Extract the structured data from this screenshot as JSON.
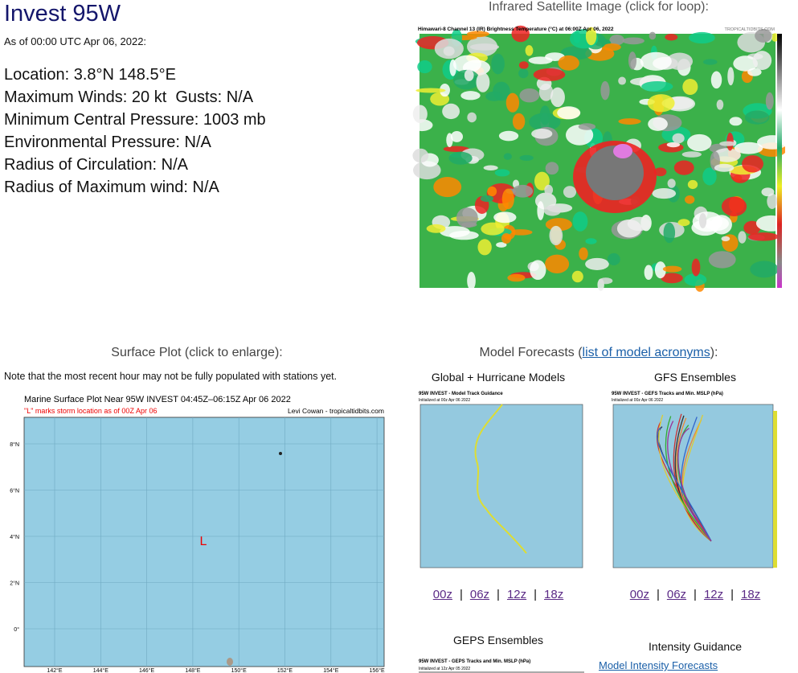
{
  "header": {
    "title": "Invest 95W",
    "as_of": "As of 00:00 UTC Apr 06, 2022:"
  },
  "details": [
    "Location: 3.8°N 148.5°E",
    "Maximum Winds: 20 kt  Gusts: N/A",
    "Minimum Central Pressure: 1003 mb",
    "Environmental Pressure: N/A",
    "Radius of Circulation: N/A",
    "Radius of Maximum wind: N/A"
  ],
  "satellite": {
    "heading": "Infrared Satellite Image (click for loop):",
    "image_title": "Himawari-8 Channel 13 (IR) Brightness Temperature (°C) at 06:00Z Apr 06, 2022",
    "credit": "TROPICALTIDBITS.COM"
  },
  "surface": {
    "heading": "Surface Plot (click to enlarge):",
    "note": "Note that the most recent hour may not be fully populated with stations yet.",
    "image_title": "Marine Surface Plot Near 95W INVEST 04:45Z–06:15Z Apr 06 2022",
    "image_subtitle": "\"L\" marks storm location as of 00Z Apr 06",
    "credit": "Levi Cowan - tropicaltidbits.com",
    "lat_labels": [
      "8°N",
      "6°N",
      "4°N",
      "2°N",
      "0°"
    ],
    "lon_labels": [
      "142°E",
      "144°E",
      "146°E",
      "148°E",
      "150°E",
      "152°E",
      "154°E",
      "156°E"
    ],
    "storm_marker": "L"
  },
  "models": {
    "heading_before": "Model Forecasts (",
    "heading_link": "list of model acronyms",
    "heading_after": "):",
    "separator": "|",
    "panels": [
      {
        "title": "Global + Hurricane Models",
        "image_title": "95W INVEST - Model Track Guidance",
        "image_subtitle": "Initialized at 00z Apr 06 2022",
        "links": [
          "00z",
          "06z",
          "12z",
          "18z"
        ]
      },
      {
        "title": "GFS Ensembles",
        "image_title": "95W INVEST - GEFS Tracks and Min. MSLP (hPa)",
        "image_subtitle": "Initialized at 00z Apr 06 2022",
        "links": [
          "00z",
          "06z",
          "12z",
          "18z"
        ]
      }
    ],
    "geps": {
      "title": "GEPS Ensembles",
      "image_title": "95W INVEST - GEPS Tracks and Min. MSLP (hPa)",
      "image_subtitle": "Initialized at 12z Apr 05 2022"
    },
    "intensity": {
      "title": "Intensity Guidance",
      "link": "Model Intensity Forecasts"
    }
  }
}
